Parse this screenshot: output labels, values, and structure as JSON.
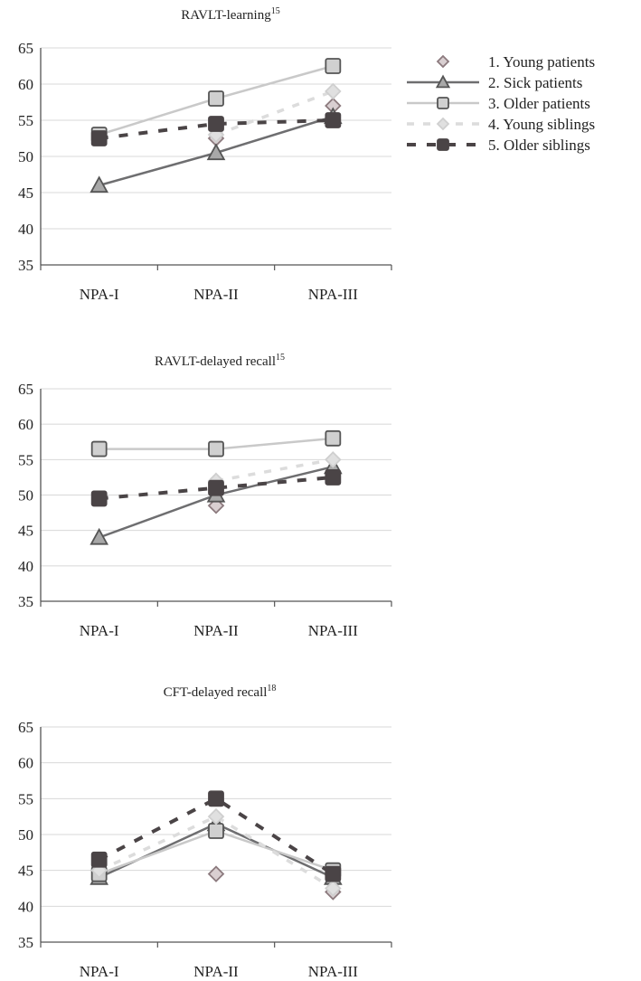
{
  "chart_data": [
    {
      "type": "line",
      "title": "RAVLT-learning",
      "title_sup": "15",
      "xlabel": "",
      "ylabel": "",
      "categories": [
        "NPA-I",
        "NPA-II",
        "NPA-III"
      ],
      "ylim": [
        35,
        65
      ],
      "yticks": [
        "65",
        "60",
        "55",
        "50",
        "45",
        "40",
        "35"
      ],
      "grid": true,
      "series": [
        {
          "name": "1. Young patients",
          "values": [
            null,
            52.5,
            57
          ]
        },
        {
          "name": "2. Sick patients",
          "values": [
            46,
            50.5,
            55.5
          ]
        },
        {
          "name": "3. Older patients",
          "values": [
            53,
            58,
            62.5
          ]
        },
        {
          "name": "4. Young siblings",
          "values": [
            null,
            53,
            59
          ]
        },
        {
          "name": "5. Older siblings",
          "values": [
            52.5,
            54.5,
            55
          ]
        }
      ]
    },
    {
      "type": "line",
      "title": "RAVLT-delayed recall",
      "title_sup": "15",
      "xlabel": "",
      "ylabel": "",
      "categories": [
        "NPA-I",
        "NPA-II",
        "NPA-III"
      ],
      "ylim": [
        35,
        65
      ],
      "yticks": [
        "65",
        "60",
        "55",
        "50",
        "45",
        "40",
        "35"
      ],
      "grid": true,
      "series": [
        {
          "name": "1. Young patients",
          "values": [
            null,
            48.5,
            53
          ]
        },
        {
          "name": "2. Sick patients",
          "values": [
            44,
            50,
            54
          ]
        },
        {
          "name": "3. Older patients",
          "values": [
            56.5,
            56.5,
            58
          ]
        },
        {
          "name": "4. Young siblings",
          "values": [
            null,
            52,
            55
          ]
        },
        {
          "name": "5. Older siblings",
          "values": [
            49.5,
            51,
            52.5
          ]
        }
      ]
    },
    {
      "type": "line",
      "title": "CFT-delayed recall",
      "title_sup": "18",
      "xlabel": "",
      "ylabel": "",
      "categories": [
        "NPA-I",
        "NPA-II",
        "NPA-III"
      ],
      "ylim": [
        35,
        65
      ],
      "yticks": [
        "65",
        "60",
        "55",
        "50",
        "45",
        "40",
        "35"
      ],
      "grid": true,
      "series": [
        {
          "name": "1. Young patients",
          "values": [
            null,
            44.5,
            42
          ]
        },
        {
          "name": "2. Sick patients",
          "values": [
            44,
            51.5,
            44
          ]
        },
        {
          "name": "3. Older patients",
          "values": [
            44.5,
            50.5,
            45
          ]
        },
        {
          "name": "4. Young siblings",
          "values": [
            45,
            52.5,
            42.5
          ]
        },
        {
          "name": "5. Older siblings",
          "values": [
            46.5,
            55,
            44.5
          ]
        }
      ]
    }
  ],
  "legend": {
    "placement": "right of first chart",
    "items": [
      "1. Young patients",
      "2. Sick patients",
      "3. Older patients",
      "4. Young siblings",
      "5. Older siblings"
    ]
  },
  "colors": {
    "young_patients": "#8c7a7e",
    "sick_patients": "#6e6e70",
    "older_patients": "#c9c9c9",
    "young_siblings": "#dcdcdc",
    "older_siblings": "#4a4446",
    "grid": "#d8d8d8",
    "axis": "#555555"
  }
}
